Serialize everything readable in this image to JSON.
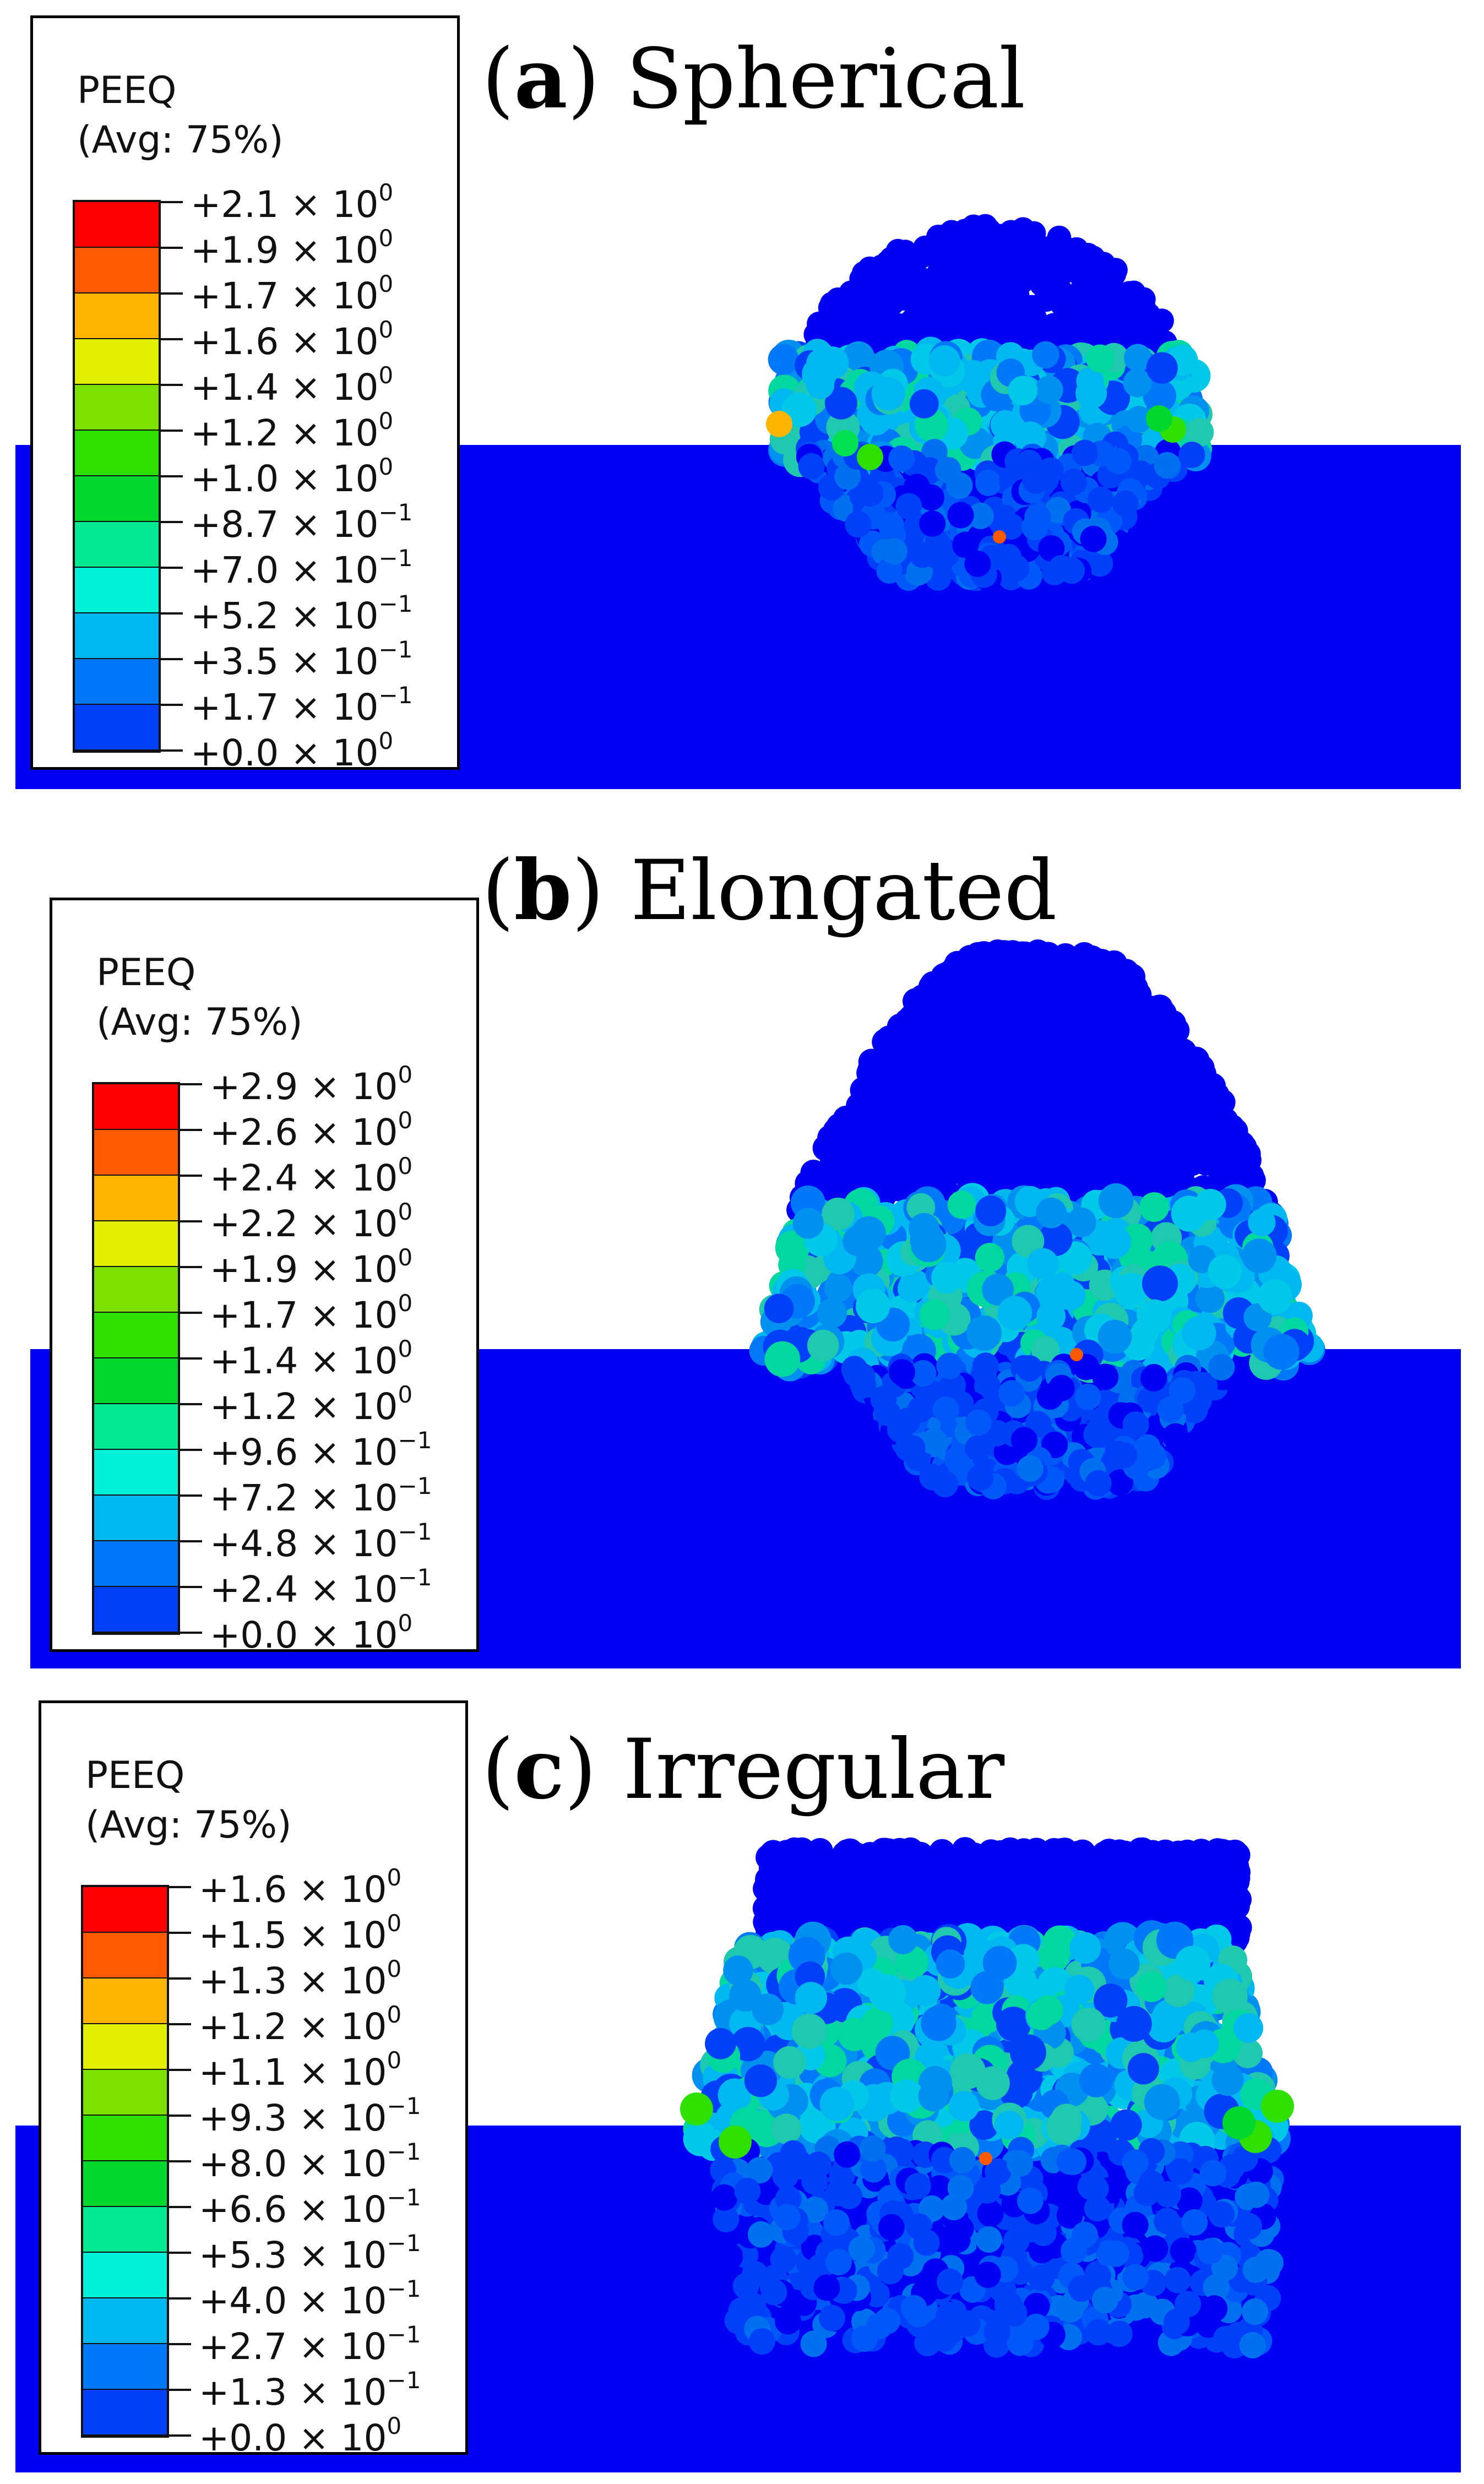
{
  "panels": [
    {
      "id": "a",
      "letter": "a",
      "name": "Spherical",
      "legend": {
        "title": "PEEQ",
        "subtitle": "(Avg: 75%)",
        "labels": [
          {
            "mant": "+2.1 × 10",
            "exp": "0"
          },
          {
            "mant": "+1.9 × 10",
            "exp": "0"
          },
          {
            "mant": "+1.7 × 10",
            "exp": "0"
          },
          {
            "mant": "+1.6 × 10",
            "exp": "0"
          },
          {
            "mant": "+1.4 × 10",
            "exp": "0"
          },
          {
            "mant": "+1.2 × 10",
            "exp": "0"
          },
          {
            "mant": "+1.0 × 10",
            "exp": "0"
          },
          {
            "mant": "+8.7 × 10",
            "exp": "−1"
          },
          {
            "mant": "+7.0 × 10",
            "exp": "−1"
          },
          {
            "mant": "+5.2 × 10",
            "exp": "−1"
          },
          {
            "mant": "+3.5 × 10",
            "exp": "−1"
          },
          {
            "mant": "+1.7 × 10",
            "exp": "−1"
          },
          {
            "mant": "+0.0 × 10",
            "exp": "0"
          }
        ]
      }
    },
    {
      "id": "b",
      "letter": "b",
      "name": "Elongated",
      "legend": {
        "title": "PEEQ",
        "subtitle": "(Avg: 75%)",
        "labels": [
          {
            "mant": "+2.9 × 10",
            "exp": "0"
          },
          {
            "mant": "+2.6 × 10",
            "exp": "0"
          },
          {
            "mant": "+2.4 × 10",
            "exp": "0"
          },
          {
            "mant": "+2.2 × 10",
            "exp": "0"
          },
          {
            "mant": "+1.9 × 10",
            "exp": "0"
          },
          {
            "mant": "+1.7 × 10",
            "exp": "0"
          },
          {
            "mant": "+1.4 × 10",
            "exp": "0"
          },
          {
            "mant": "+1.2 × 10",
            "exp": "0"
          },
          {
            "mant": "+9.6 × 10",
            "exp": "−1"
          },
          {
            "mant": "+7.2 × 10",
            "exp": "−1"
          },
          {
            "mant": "+4.8 × 10",
            "exp": "−1"
          },
          {
            "mant": "+2.4 × 10",
            "exp": "−1"
          },
          {
            "mant": "+0.0 × 10",
            "exp": "0"
          }
        ]
      }
    },
    {
      "id": "c",
      "letter": "c",
      "name": "Irregular",
      "legend": {
        "title": "PEEQ",
        "subtitle": "(Avg: 75%)",
        "labels": [
          {
            "mant": "+1.6 × 10",
            "exp": "0"
          },
          {
            "mant": "+1.5 × 10",
            "exp": "0"
          },
          {
            "mant": "+1.3 × 10",
            "exp": "0"
          },
          {
            "mant": "+1.2 × 10",
            "exp": "0"
          },
          {
            "mant": "+1.1 × 10",
            "exp": "0"
          },
          {
            "mant": "+9.3 × 10",
            "exp": "−1"
          },
          {
            "mant": "+8.0 × 10",
            "exp": "−1"
          },
          {
            "mant": "+6.6 × 10",
            "exp": "−1"
          },
          {
            "mant": "+5.3 × 10",
            "exp": "−1"
          },
          {
            "mant": "+4.0 × 10",
            "exp": "−1"
          },
          {
            "mant": "+2.7 × 10",
            "exp": "−1"
          },
          {
            "mant": "+1.3 × 10",
            "exp": "−1"
          },
          {
            "mant": "+0.0 × 10",
            "exp": "0"
          }
        ]
      }
    }
  ],
  "colormap": [
    "#ff0000",
    "#ff5a00",
    "#ffb400",
    "#e0f000",
    "#7ee000",
    "#2ee000",
    "#00d830",
    "#00e890",
    "#00f0d8",
    "#00b8f0",
    "#0078f8",
    "#0040f8",
    "#0000f5"
  ],
  "substrate_color": "#0000f5"
}
